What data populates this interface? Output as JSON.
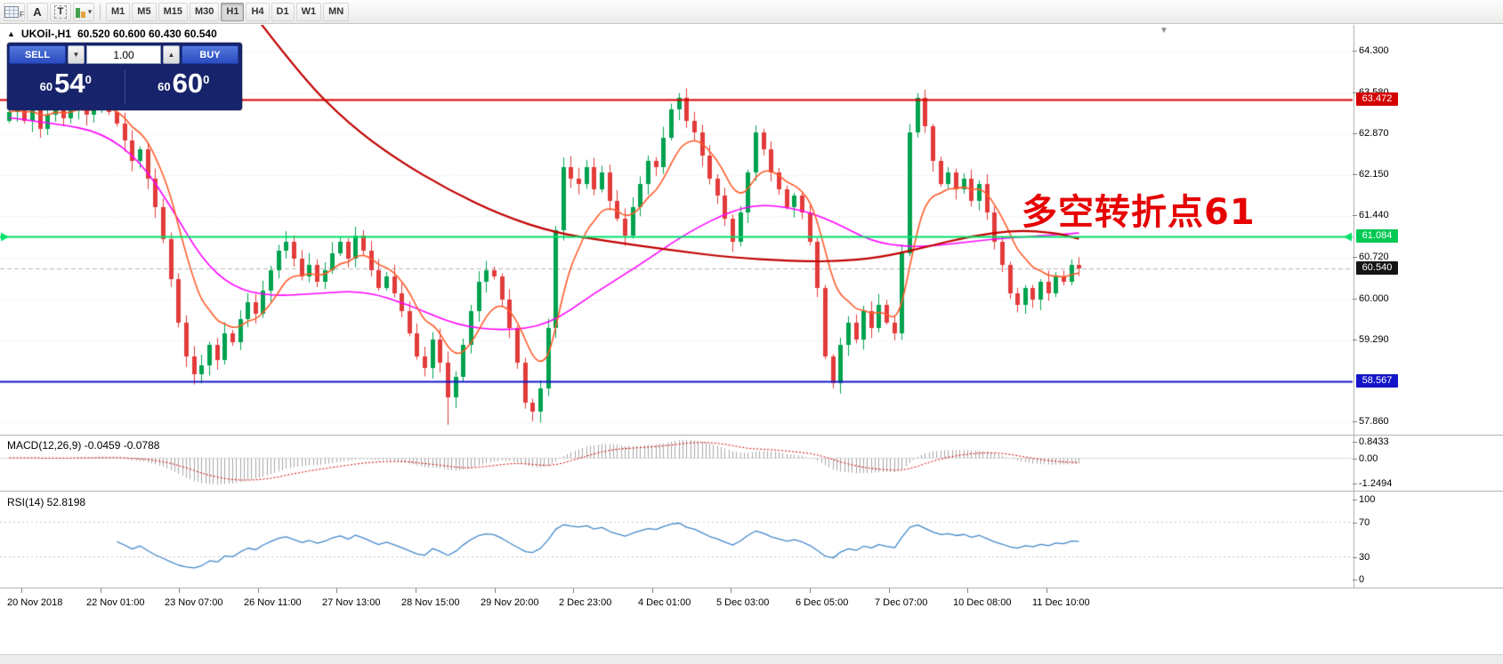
{
  "toolbar": {
    "icons": [
      {
        "name": "tick-grid-icon",
        "badge": "F"
      },
      {
        "name": "text-tool-icon",
        "glyph": "A"
      },
      {
        "name": "label-tool-icon",
        "glyph": "T"
      },
      {
        "name": "objects-icon",
        "arrow": "▾"
      }
    ],
    "timeframes": [
      {
        "label": "M1",
        "active": false
      },
      {
        "label": "M5",
        "active": false
      },
      {
        "label": "M15",
        "active": false
      },
      {
        "label": "M30",
        "active": false
      },
      {
        "label": "H1",
        "active": true
      },
      {
        "label": "H4",
        "active": false
      },
      {
        "label": "D1",
        "active": false
      },
      {
        "label": "W1",
        "active": false
      },
      {
        "label": "MN",
        "active": false
      }
    ]
  },
  "chart": {
    "collapse_arrow": "▲",
    "symbol": "UKOil-,H1",
    "ohlc_text": "60.520 60.600 60.430 60.540",
    "shift_marker": "▼",
    "one_click": {
      "sell_label": "SELL",
      "buy_label": "BUY",
      "volume": "1.00",
      "sell_price_prefix": "60",
      "sell_price_big": "54",
      "sell_price_sup": "0",
      "buy_price_prefix": "60",
      "buy_price_big": "60",
      "buy_price_sup": "0"
    },
    "annotation": {
      "text": "多空转折点61",
      "color": "#e60000"
    },
    "price_axis_labels": [
      "64.300",
      "63.580",
      "62.870",
      "62.150",
      "61.440",
      "60.720",
      "60.000",
      "59.290",
      "57.860"
    ],
    "badges": [
      {
        "label": "63.472",
        "price": 63.472,
        "color": "#d40000"
      },
      {
        "label": "61.084",
        "price": 61.084,
        "color": "#00c853"
      },
      {
        "label": "60.540",
        "price": 60.54,
        "color": "#151515"
      },
      {
        "label": "58.567",
        "price": 58.567,
        "color": "#1414c8"
      }
    ]
  },
  "macd_panel": {
    "title": "MACD(12,26,9) -0.0459 -0.0788",
    "axis": [
      {
        "text": "0.8433",
        "value": 0.8433
      },
      {
        "text": "0.00",
        "value": 0
      },
      {
        "text": "-1.2494",
        "value": -1.2494
      }
    ]
  },
  "rsi_panel": {
    "title": "RSI(14) 52.8198",
    "axis": [
      {
        "text": "100",
        "value": 100
      },
      {
        "text": "70",
        "value": 70
      },
      {
        "text": "30",
        "value": 30
      },
      {
        "text": "0",
        "value": 0
      }
    ]
  },
  "time_axis": {
    "labels": [
      "20 Nov 2018",
      "22 Nov 01:00",
      "23 Nov 07:00",
      "26 Nov 11:00",
      "27 Nov 13:00",
      "28 Nov 15:00",
      "29 Nov 20:00",
      "2 Dec 23:00",
      "4 Dec 01:00",
      "5 Dec 03:00",
      "6 Dec 05:00",
      "7 Dec 07:00",
      "10 Dec 08:00",
      "11 Dec 10:00"
    ],
    "spacing_px": 88.6
  },
  "chart_data": {
    "type": "candlestick",
    "symbol": "UKOil-",
    "timeframe": "H1",
    "ohlc": {
      "open": 60.52,
      "high": 60.6,
      "low": 60.43,
      "close": 60.54
    },
    "price_range": {
      "min": 57.6,
      "max": 64.75
    },
    "price_gridlines": [
      64.3,
      63.58,
      62.87,
      62.15,
      61.44,
      60.72,
      60.0,
      59.29,
      58.58,
      57.86
    ],
    "current_price": 60.54,
    "first_open": 63.1,
    "up_color": "#00a24f",
    "down_color": "#e23b3b",
    "closes": [
      63.25,
      63.4,
      63.1,
      63.35,
      62.95,
      63.2,
      63.45,
      63.15,
      63.3,
      63.5,
      63.2,
      63.35,
      63.5,
      63.25,
      63.05,
      62.75,
      62.4,
      62.6,
      62.1,
      61.6,
      61.05,
      60.35,
      59.6,
      59.0,
      58.7,
      58.85,
      59.2,
      58.95,
      59.4,
      59.25,
      59.65,
      59.95,
      59.75,
      60.15,
      60.5,
      60.85,
      61.0,
      60.7,
      60.4,
      60.6,
      60.3,
      60.5,
      60.8,
      61.0,
      60.7,
      61.1,
      60.85,
      60.5,
      60.2,
      60.4,
      60.1,
      59.8,
      59.4,
      59.0,
      58.8,
      59.3,
      58.9,
      58.3,
      58.65,
      59.2,
      59.8,
      60.3,
      60.5,
      60.4,
      60.0,
      59.5,
      58.9,
      58.2,
      58.05,
      58.45,
      59.5,
      61.2,
      62.3,
      62.1,
      62.0,
      62.3,
      61.9,
      62.2,
      61.7,
      61.4,
      61.1,
      61.6,
      62.0,
      62.4,
      62.3,
      62.8,
      63.3,
      63.5,
      63.1,
      62.9,
      62.5,
      62.1,
      61.8,
      61.4,
      61.0,
      61.5,
      62.2,
      62.9,
      62.6,
      62.2,
      61.9,
      61.6,
      61.8,
      61.5,
      61.0,
      60.2,
      59.0,
      58.55,
      59.2,
      59.6,
      59.3,
      59.8,
      59.5,
      59.9,
      59.6,
      59.4,
      60.8,
      62.9,
      63.5,
      63.0,
      62.4,
      62.0,
      62.2,
      61.9,
      62.1,
      61.7,
      62.0,
      61.5,
      61.0,
      60.6,
      60.1,
      59.9,
      60.2,
      60.0,
      60.3,
      60.1,
      60.4,
      60.3,
      60.6,
      60.54
    ],
    "wick_overrides": {
      "24": {
        "l": 58.52
      },
      "57": {
        "l": 57.82
      },
      "68": {
        "l": 57.88
      },
      "87": {
        "h": 63.58
      },
      "97": {
        "h": 63.02
      },
      "107": {
        "l": 58.45
      },
      "118": {
        "h": 63.58
      }
    },
    "hlines": [
      {
        "price": 63.472,
        "color": "#d40000",
        "width": 2,
        "arrows": false
      },
      {
        "price": 61.084,
        "color": "#00e06a",
        "width": 2,
        "arrows": true
      },
      {
        "price": 58.567,
        "color": "#1414c8",
        "width": 2,
        "arrows": false
      }
    ],
    "ma_short": {
      "period": 8,
      "color": "#ff5a2a"
    },
    "ma_long": {
      "color": "#c00000",
      "points": [
        [
          32,
          64.9
        ],
        [
          38,
          63.85
        ],
        [
          44,
          63.05
        ],
        [
          50,
          62.45
        ],
        [
          57,
          61.9
        ],
        [
          64,
          61.45
        ],
        [
          71,
          61.15
        ],
        [
          78,
          61.0
        ],
        [
          86,
          60.85
        ],
        [
          94,
          60.72
        ],
        [
          101,
          60.67
        ],
        [
          107,
          60.65
        ],
        [
          113,
          60.72
        ],
        [
          119,
          60.9
        ],
        [
          125,
          61.1
        ],
        [
          131,
          61.2
        ],
        [
          136,
          61.15
        ],
        [
          139,
          61.05
        ]
      ]
    },
    "ma_medium": {
      "color": "#ff00ff",
      "points": [
        [
          0,
          63.15
        ],
        [
          6,
          63.05
        ],
        [
          12,
          62.9
        ],
        [
          17,
          62.4
        ],
        [
          21,
          61.6
        ],
        [
          25,
          60.7
        ],
        [
          29,
          60.2
        ],
        [
          34,
          60.05
        ],
        [
          40,
          60.1
        ],
        [
          46,
          60.15
        ],
        [
          52,
          59.9
        ],
        [
          58,
          59.55
        ],
        [
          64,
          59.45
        ],
        [
          70,
          59.55
        ],
        [
          76,
          60.1
        ],
        [
          82,
          60.6
        ],
        [
          88,
          61.15
        ],
        [
          94,
          61.55
        ],
        [
          98,
          61.65
        ],
        [
          103,
          61.55
        ],
        [
          107,
          61.35
        ],
        [
          112,
          61.0
        ],
        [
          117,
          60.9
        ],
        [
          122,
          60.95
        ],
        [
          128,
          61.05
        ],
        [
          134,
          61.1
        ],
        [
          139,
          61.15
        ]
      ]
    },
    "macd": {
      "fast": 12,
      "slow": 26,
      "signal": 9,
      "value": -0.0459,
      "signal_value": -0.0788,
      "range": [
        -1.2494,
        0.8433
      ],
      "hist_color": "#a6a6a6",
      "signal_color": "#d40000"
    },
    "rsi": {
      "period": 14,
      "value": 52.8198,
      "color": "#4288c9",
      "range": [
        0,
        100
      ],
      "levels": [
        70,
        30
      ]
    }
  }
}
